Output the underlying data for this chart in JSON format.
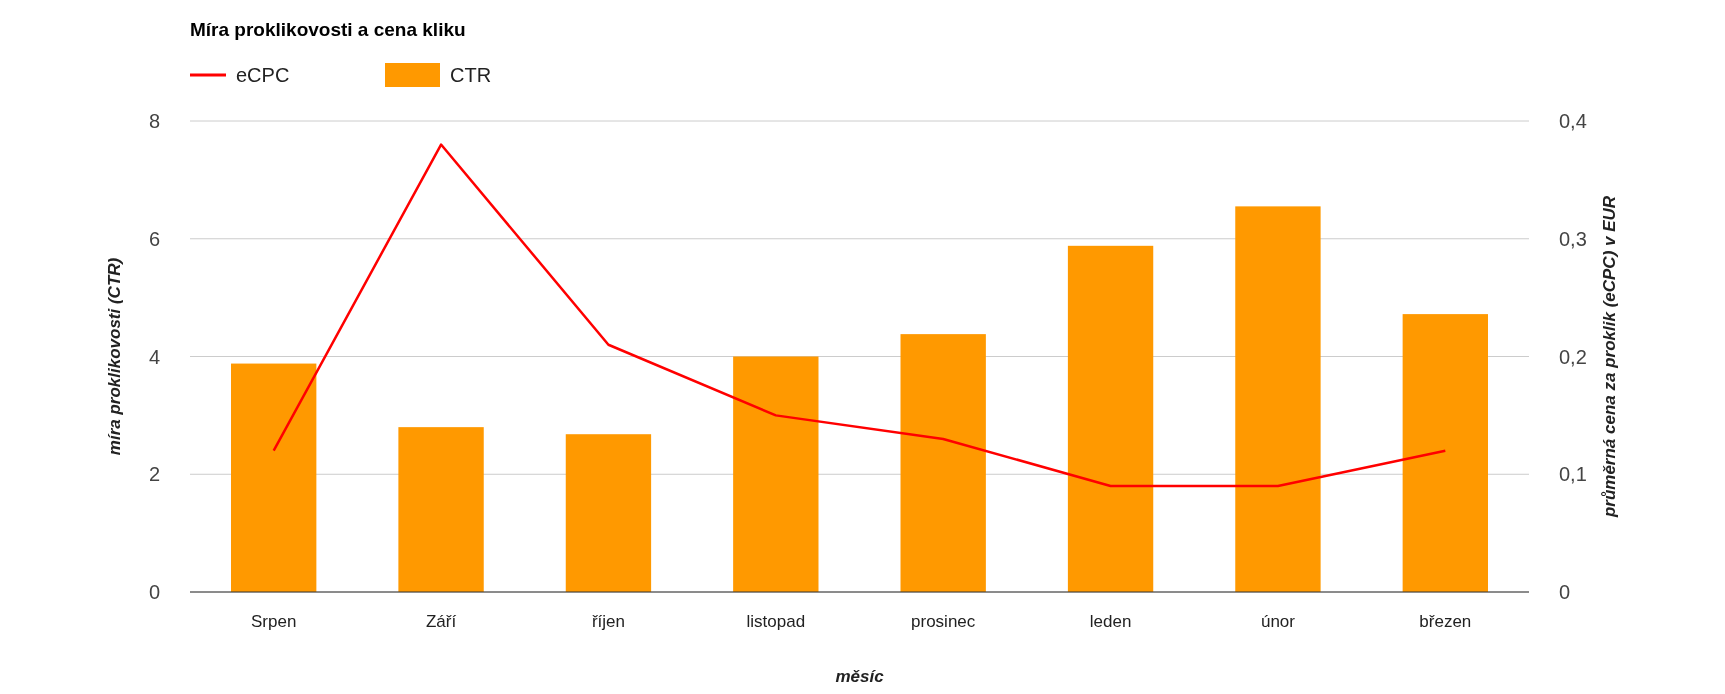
{
  "chart_data": {
    "type": "bar",
    "title": "Míra proklikovosti a cena kliku",
    "xlabel": "měsíc",
    "ylabel": "míra proklikovosti (CTR)",
    "y2label": "průměrná cena za proklik (eCPC) v EUR",
    "categories": [
      "Srpen",
      "Září",
      "říjen",
      "listopad",
      "prosinec",
      "leden",
      "únor",
      "březen"
    ],
    "series": [
      {
        "name": "eCPC",
        "type": "line",
        "axis": "y2",
        "color": "#ff0000",
        "values": [
          0.12,
          0.38,
          0.21,
          0.15,
          0.13,
          0.09,
          0.09,
          0.12
        ]
      },
      {
        "name": "CTR",
        "color": "#ff9900",
        "values": [
          3.88,
          2.8,
          2.68,
          4.0,
          4.38,
          5.88,
          6.55,
          4.72
        ]
      }
    ],
    "ylim": [
      0,
      8
    ],
    "yticks": [
      0,
      2,
      4,
      6,
      8
    ],
    "y2lim": [
      0,
      0.4
    ],
    "y2ticks": [
      0,
      {
        "value": 0.1,
        "label": "0,1"
      },
      {
        "value": 0.2,
        "label": "0,2"
      },
      {
        "value": 0.3,
        "label": "0,3"
      },
      {
        "value": 0.4,
        "label": "0,4"
      }
    ],
    "grid": "y",
    "legend": "top left",
    "marker": "none",
    "line_style": "solid"
  }
}
